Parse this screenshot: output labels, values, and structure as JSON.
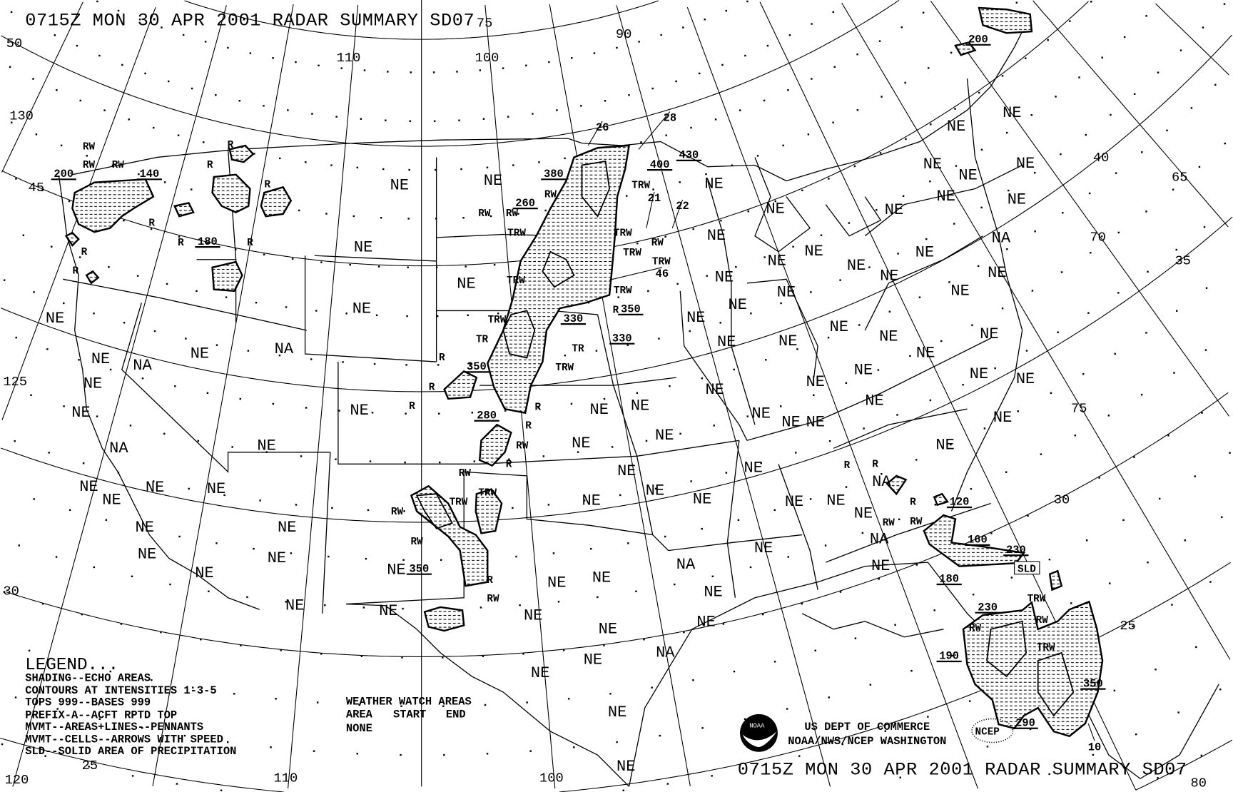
{
  "header": {
    "title": "0715Z MON 30 APR 2001 RADAR SUMMARY SD07"
  },
  "footer": {
    "title": "0715Z MON 30 APR 2001 RADAR SUMMARY SD07",
    "agency_line1": "US DEPT OF COMMERCE",
    "agency_line2": "NOAA/NWS/NCEP WASHINGTON",
    "noaa_logo_text": "NOAA",
    "ncep_logo_text": "NCEP"
  },
  "legend": {
    "heading": "LEGEND...",
    "lines": [
      "SHADING--ECHO AREAS",
      "CONTOURS AT INTENSITIES 1-3-5",
      "TOPS 999--BASES 999",
      "PREFIX-A--ACFT RPTD TOP",
      "MVMT--AREAS+LINES--PENNANTS",
      "MVMT--CELLS--ARROWS WITH SPEED",
      "SLD--SOLID AREA OF PRECIPITATION"
    ]
  },
  "watch": {
    "heading": "WEATHER WATCH AREAS",
    "columns": [
      "AREA",
      "START",
      "END"
    ],
    "value": "NONE"
  },
  "grid_labels": {
    "latitudes": [
      "50",
      "45",
      "40",
      "35",
      "30",
      "25",
      "30",
      "25"
    ],
    "longitudes": [
      "130",
      "125",
      "120",
      "110",
      "100",
      "90",
      "75",
      "65",
      "70",
      "75",
      "110",
      "100",
      "80",
      "125"
    ]
  },
  "area_codes": [
    "NE",
    "NE",
    "NE",
    "NE",
    "NE",
    "NE",
    "NE",
    "NA",
    "NE",
    "NA",
    "NE",
    "NE",
    "NA",
    "NE",
    "NE",
    "NE",
    "NE",
    "NE",
    "NE",
    "NE",
    "NE",
    "NE",
    "NE",
    "NE",
    "NE",
    "NE",
    "NE",
    "NA",
    "NE",
    "NE",
    "NA",
    "NE",
    "NE",
    "NA",
    "NE",
    "NE",
    "NE",
    "NE",
    "NE",
    "NE",
    "NE",
    "NE",
    "NE",
    "NE",
    "NE",
    "NE",
    "NE",
    "NE",
    "NE",
    "NE",
    "NE",
    "NE",
    "NE",
    "NE",
    "NE",
    "NE",
    "NE",
    "NE",
    "NE",
    "NE",
    "NE",
    "NE",
    "NE",
    "NE",
    "NE",
    "NE",
    "NE",
    "NE",
    "NE",
    "NE",
    "NE",
    "NE",
    "NE",
    "NE",
    "NE",
    "NE",
    "NE",
    "NE",
    "NE",
    "NE",
    "NE",
    "NE",
    "NE",
    "NE",
    "NA",
    "NE",
    "NE",
    "NE",
    "NE",
    "NE",
    "NE",
    "NE",
    "NE",
    "NE",
    "NA"
  ],
  "precip_types": [
    "RW",
    "RW",
    "RW",
    "R",
    "R",
    "R",
    "R",
    "R",
    "R",
    "R",
    "R",
    "RW",
    "RW",
    "RW",
    "TRW",
    "TRW",
    "TRW",
    "TR",
    "TRW",
    "TR",
    "R",
    "R",
    "R",
    "R",
    "R",
    "RW",
    "R",
    "RW",
    "TRW",
    "TRW",
    "RW",
    "RW",
    "R",
    "RW",
    "TRW",
    "TRW",
    "TRW",
    "RW",
    "TRW",
    "TRW",
    "R",
    "R",
    "R",
    "R",
    "RW",
    "RW",
    "TRW",
    "RW",
    "RW",
    "TRW"
  ],
  "echo_tops": [
    "200",
    "140",
    "180",
    "380",
    "260",
    "350",
    "280",
    "330",
    "350",
    "330",
    "430",
    "400",
    "350",
    "200",
    "120",
    "160",
    "230",
    "180",
    "230",
    "190",
    "350",
    "290"
  ],
  "cell_speeds": [
    "26",
    "28",
    "21",
    "22",
    "46",
    "10"
  ],
  "sld_label": "SLD",
  "colors": {
    "ink": "#000000",
    "background": "#ffffff"
  }
}
